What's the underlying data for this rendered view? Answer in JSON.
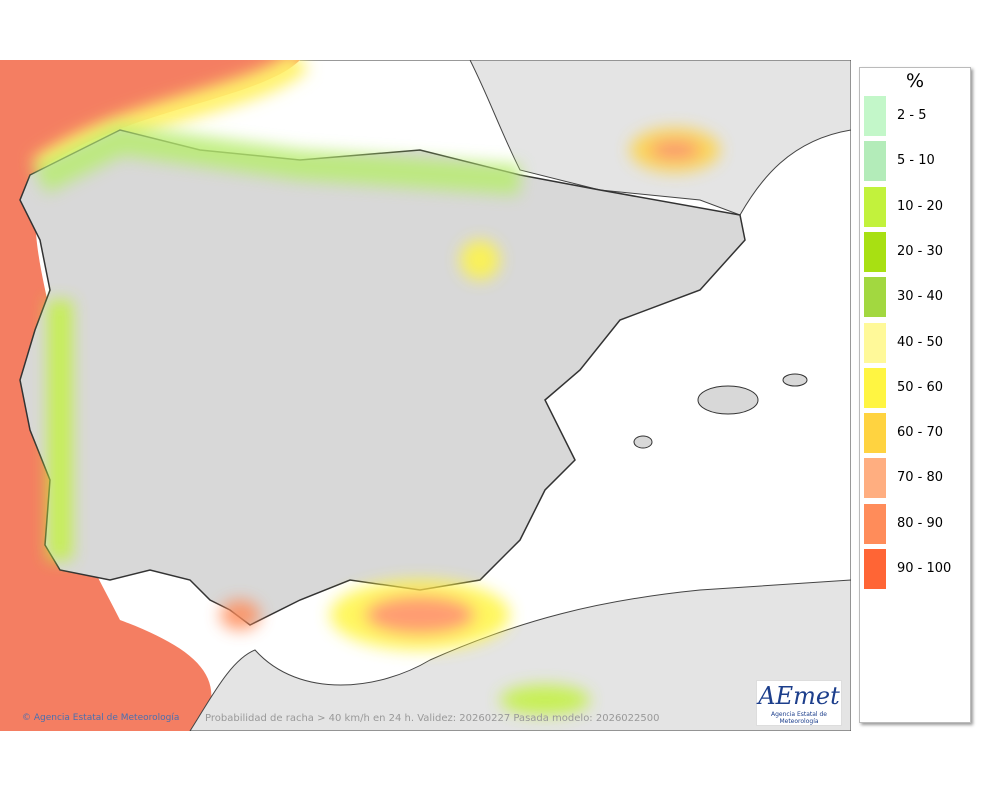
{
  "map": {
    "legend": {
      "title": "%",
      "items": [
        {
          "label": "2 - 5",
          "color": "#c3f7c9"
        },
        {
          "label": "5 - 10",
          "color": "#b3ecb9"
        },
        {
          "label": "10 - 20",
          "color": "#c2f23c"
        },
        {
          "label": "20 - 30",
          "color": "#a8e012"
        },
        {
          "label": "30 - 40",
          "color": "#a2d840"
        },
        {
          "label": "40 - 50",
          "color": "#fff999"
        },
        {
          "label": "50 - 60",
          "color": "#fff542"
        },
        {
          "label": "60 - 70",
          "color": "#ffd340"
        },
        {
          "label": "70 - 80",
          "color": "#ffae80"
        },
        {
          "label": "80 - 90",
          "color": "#ff8c5a"
        },
        {
          "label": "90 - 100",
          "color": "#ff6535"
        }
      ]
    },
    "footer": {
      "credit": "© Agencia Estatal de Meteorología",
      "caption": "Probabilidad de racha > 40 km/h en 24 h. Validez: 20260227 Pasada modelo: 2026022500"
    },
    "logo": {
      "name": "AEmet",
      "subtitle": "Agencia Estatal de Meteorología"
    }
  }
}
